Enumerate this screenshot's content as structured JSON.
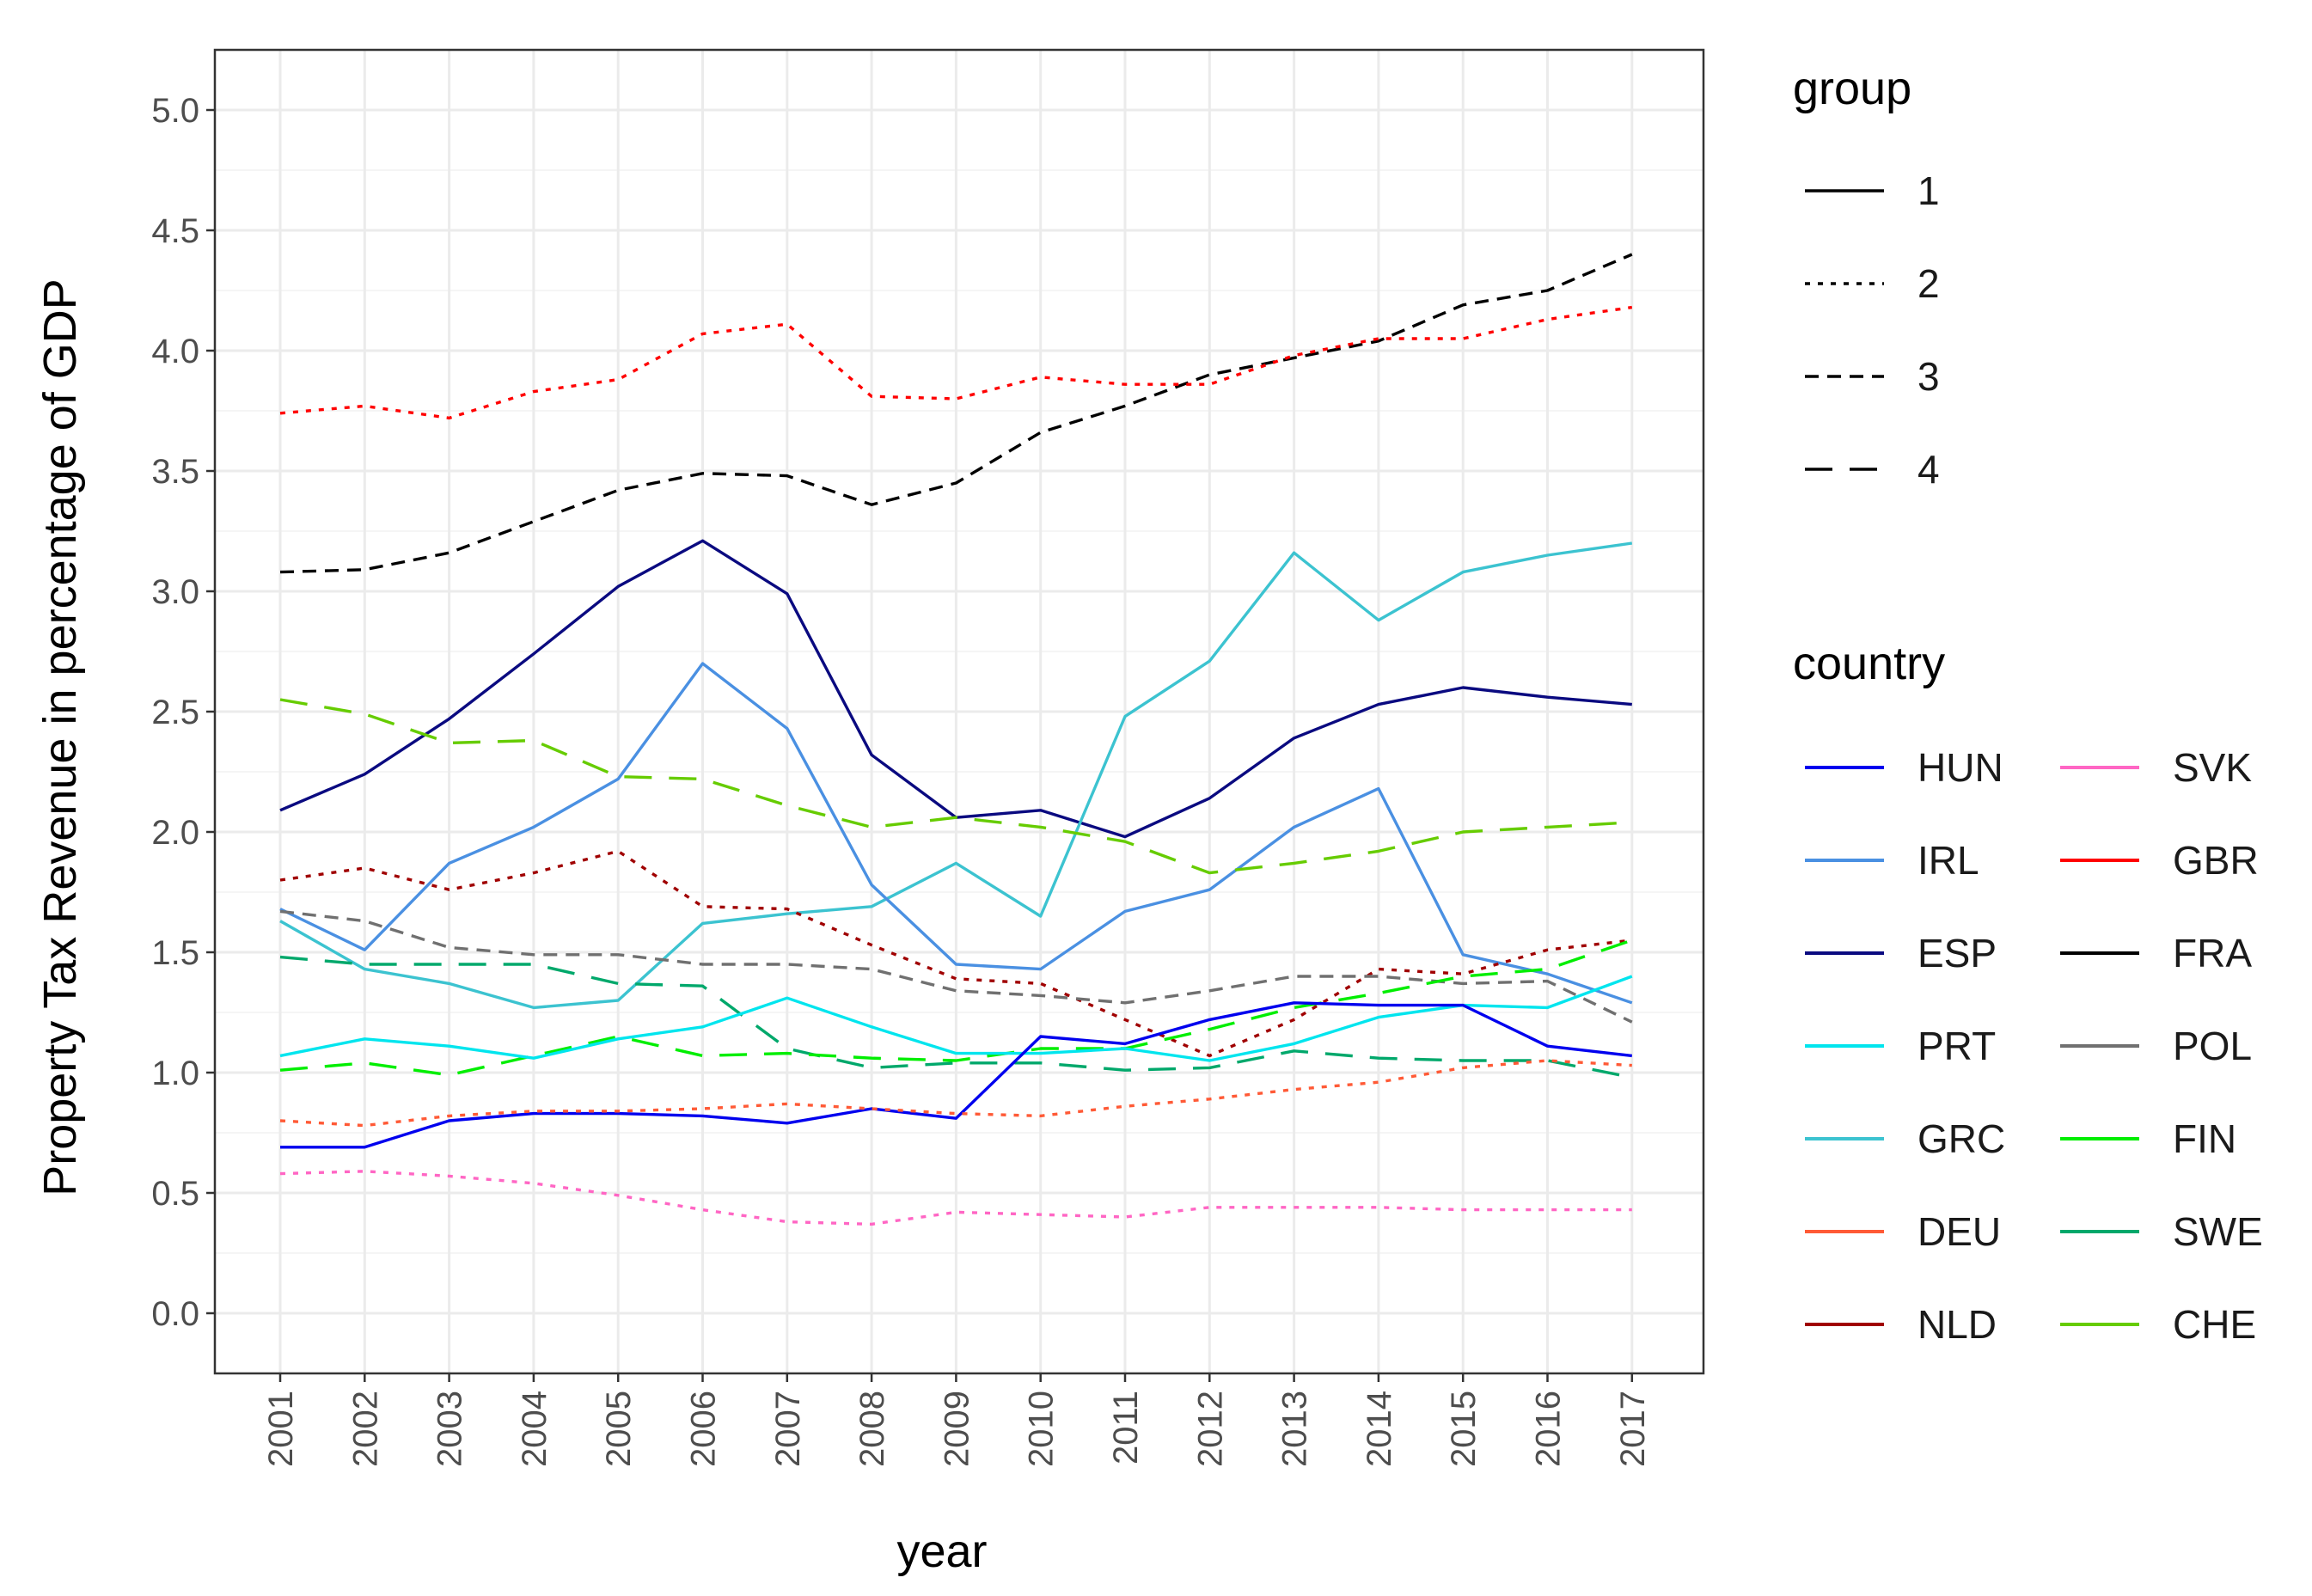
{
  "chart_data": {
    "type": "line",
    "title": "",
    "xlabel": "year",
    "ylabel": "Property Tax Revenue in percentage of GDP",
    "x": [
      2001,
      2002,
      2003,
      2004,
      2005,
      2006,
      2007,
      2008,
      2009,
      2010,
      2011,
      2012,
      2013,
      2014,
      2015,
      2016,
      2017
    ],
    "x_tick_labels": [
      "2001",
      "2002",
      "2003",
      "2004",
      "2005",
      "2006",
      "2007",
      "2008",
      "2009",
      "2010",
      "2011",
      "2012",
      "2013",
      "2014",
      "2015",
      "2016",
      "2017"
    ],
    "y_ticks": [
      0.0,
      0.5,
      1.0,
      1.5,
      2.0,
      2.5,
      3.0,
      3.5,
      4.0,
      4.5,
      5.0
    ],
    "y_tick_labels": [
      "0.0",
      "0.5",
      "1.0",
      "1.5",
      "2.0",
      "2.5",
      "3.0",
      "3.5",
      "4.0",
      "4.5",
      "5.0"
    ],
    "ylim": [
      -0.25,
      5.25
    ],
    "grid": true,
    "legend_group": {
      "title": "group",
      "entries": [
        {
          "label": "1",
          "dash": "solid"
        },
        {
          "label": "2",
          "dash": "dotted"
        },
        {
          "label": "3",
          "dash": "dashed"
        },
        {
          "label": "4",
          "dash": "longdash"
        }
      ]
    },
    "legend_country": {
      "title": "country",
      "entries": [
        {
          "label": "HUN",
          "color": "#0000ee"
        },
        {
          "label": "IRL",
          "color": "#4a90e2"
        },
        {
          "label": "ESP",
          "color": "#0a0a80"
        },
        {
          "label": "PRT",
          "color": "#00e5ee"
        },
        {
          "label": "GRC",
          "color": "#3cc3d0"
        },
        {
          "label": "DEU",
          "color": "#ff5a36"
        },
        {
          "label": "NLD",
          "color": "#a00000"
        },
        {
          "label": "SVK",
          "color": "#ff66c4"
        },
        {
          "label": "GBR",
          "color": "#ff0000"
        },
        {
          "label": "FRA",
          "color": "#000000"
        },
        {
          "label": "POL",
          "color": "#707070"
        },
        {
          "label": "FIN",
          "color": "#00ee00"
        },
        {
          "label": "SWE",
          "color": "#00a86b"
        },
        {
          "label": "CHE",
          "color": "#66cc00"
        }
      ]
    },
    "series": [
      {
        "name": "FRA",
        "group": "3",
        "color": "#000000",
        "values": [
          3.08,
          3.09,
          3.16,
          3.29,
          3.42,
          3.49,
          3.48,
          3.36,
          3.45,
          3.66,
          3.77,
          3.9,
          3.97,
          4.04,
          4.19,
          4.25,
          4.4
        ]
      },
      {
        "name": "GBR",
        "group": "2",
        "color": "#ff0000",
        "values": [
          3.74,
          3.77,
          3.72,
          3.83,
          3.88,
          4.07,
          4.11,
          3.81,
          3.8,
          3.89,
          3.86,
          3.86,
          3.98,
          4.05,
          4.05,
          4.13,
          4.18
        ]
      },
      {
        "name": "ESP",
        "group": "1",
        "color": "#0a0a80",
        "values": [
          2.09,
          2.24,
          2.47,
          2.74,
          3.02,
          3.21,
          2.99,
          2.32,
          2.06,
          2.09,
          1.98,
          2.14,
          2.39,
          2.53,
          2.6,
          2.56,
          2.53
        ]
      },
      {
        "name": "GRC",
        "group": "1",
        "color": "#3cc3d0",
        "values": [
          1.63,
          1.43,
          1.37,
          1.27,
          1.3,
          1.62,
          1.66,
          1.69,
          1.87,
          1.65,
          2.48,
          2.71,
          3.16,
          2.88,
          3.08,
          3.15,
          3.2
        ]
      },
      {
        "name": "IRL",
        "group": "1",
        "color": "#4a90e2",
        "values": [
          1.68,
          1.51,
          1.87,
          2.02,
          2.22,
          2.7,
          2.43,
          1.78,
          1.45,
          1.43,
          1.67,
          1.76,
          2.02,
          2.18,
          1.49,
          1.41,
          1.29
        ]
      },
      {
        "name": "CHE",
        "group": "4",
        "color": "#66cc00",
        "values": [
          2.55,
          2.49,
          2.37,
          2.38,
          2.23,
          2.22,
          2.11,
          2.02,
          2.06,
          2.02,
          1.96,
          1.83,
          1.87,
          1.92,
          2.0,
          2.02,
          2.04
        ]
      },
      {
        "name": "NLD",
        "group": "2",
        "color": "#a00000",
        "values": [
          1.8,
          1.85,
          1.76,
          1.83,
          1.92,
          1.69,
          1.68,
          1.53,
          1.39,
          1.37,
          1.22,
          1.07,
          1.22,
          1.43,
          1.41,
          1.51,
          1.55
        ]
      },
      {
        "name": "POL",
        "group": "3",
        "color": "#707070",
        "values": [
          1.67,
          1.63,
          1.52,
          1.49,
          1.49,
          1.45,
          1.45,
          1.43,
          1.34,
          1.32,
          1.29,
          1.34,
          1.4,
          1.4,
          1.37,
          1.38,
          1.21
        ]
      },
      {
        "name": "SWE",
        "group": "4",
        "color": "#00a86b",
        "values": [
          1.48,
          1.45,
          1.45,
          1.45,
          1.37,
          1.36,
          1.1,
          1.02,
          1.04,
          1.04,
          1.01,
          1.02,
          1.09,
          1.06,
          1.05,
          1.05,
          0.98
        ]
      },
      {
        "name": "FIN",
        "group": "4",
        "color": "#00ee00",
        "values": [
          1.01,
          1.04,
          0.99,
          1.07,
          1.15,
          1.07,
          1.08,
          1.06,
          1.05,
          1.1,
          1.1,
          1.18,
          1.27,
          1.33,
          1.4,
          1.43,
          1.55
        ]
      },
      {
        "name": "PRT",
        "group": "1",
        "color": "#00e5ee",
        "values": [
          1.07,
          1.14,
          1.11,
          1.06,
          1.14,
          1.19,
          1.31,
          1.19,
          1.08,
          1.08,
          1.1,
          1.05,
          1.12,
          1.23,
          1.28,
          1.27,
          1.4
        ]
      },
      {
        "name": "HUN",
        "group": "1",
        "color": "#0000ee",
        "values": [
          0.69,
          0.69,
          0.8,
          0.83,
          0.83,
          0.82,
          0.79,
          0.85,
          0.81,
          1.15,
          1.12,
          1.22,
          1.29,
          1.28,
          1.28,
          1.11,
          1.07
        ]
      },
      {
        "name": "DEU",
        "group": "2",
        "color": "#ff5a36",
        "values": [
          0.8,
          0.78,
          0.82,
          0.84,
          0.84,
          0.85,
          0.87,
          0.85,
          0.83,
          0.82,
          0.86,
          0.89,
          0.93,
          0.96,
          1.02,
          1.05,
          1.03
        ]
      },
      {
        "name": "SVK",
        "group": "2",
        "color": "#ff66c4",
        "values": [
          0.58,
          0.59,
          0.57,
          0.54,
          0.49,
          0.43,
          0.38,
          0.37,
          0.42,
          0.41,
          0.4,
          0.44,
          0.44,
          0.44,
          0.43,
          0.43,
          0.43
        ]
      }
    ]
  }
}
